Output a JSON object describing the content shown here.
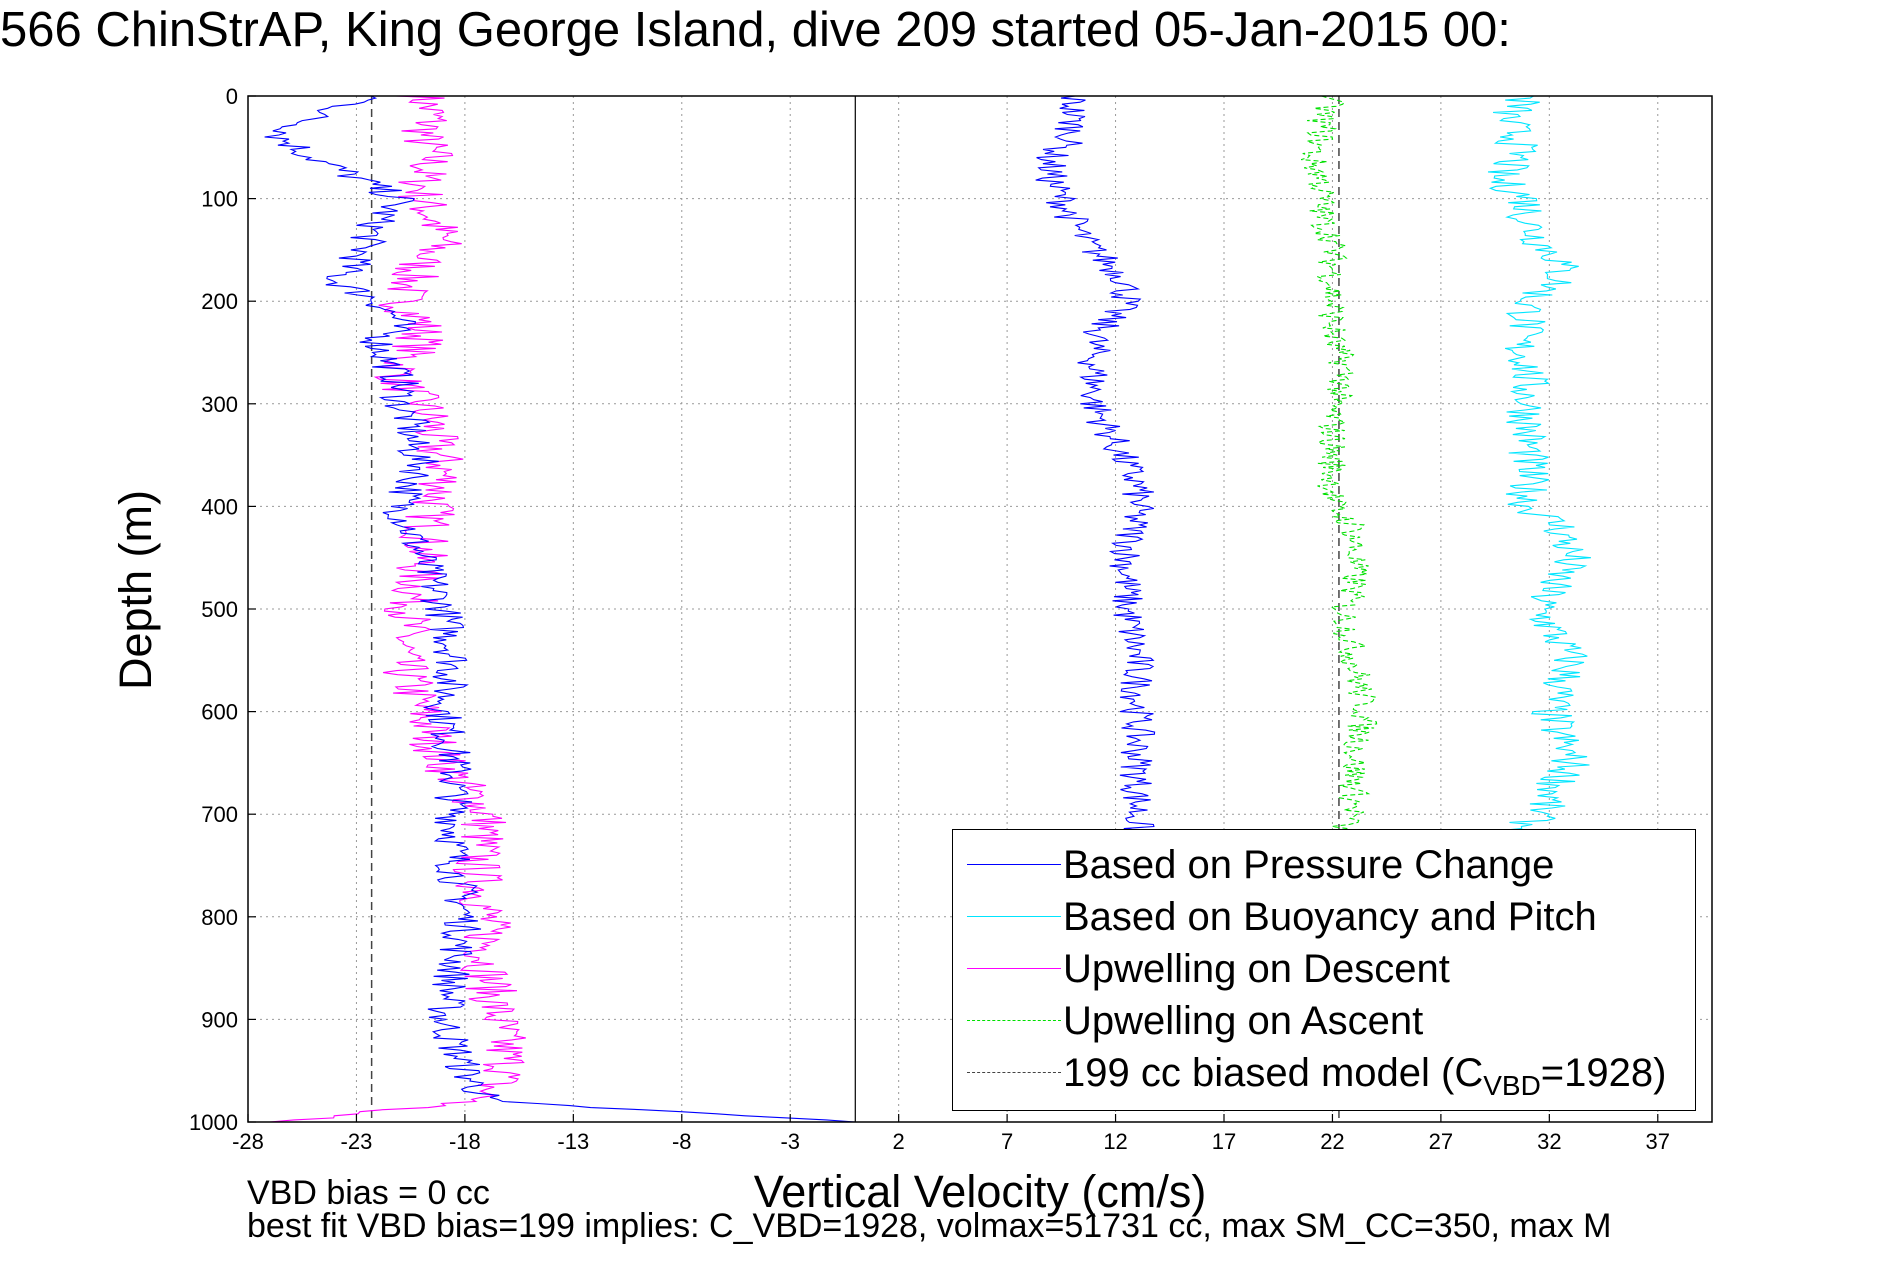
{
  "title": "566 ChinStrAP, King George Island, dive 209 started 05-Jan-2015 00:",
  "notes": {
    "line1": "VBD bias = 0 cc",
    "line2": "best fit VBD bias=199 implies: C_VBD=1928, volmax=51731 cc, max SM_CC=350, max M"
  },
  "chart_data": {
    "type": "line",
    "xlabel": "Vertical Velocity (cm/s)",
    "ylabel": "Depth (m)",
    "xlim": [
      -28,
      39.5
    ],
    "ylim": [
      0,
      1000
    ],
    "y_reversed": true,
    "grid": true,
    "xticks": [
      -28,
      -23,
      -18,
      -13,
      -8,
      -3,
      2,
      7,
      12,
      17,
      22,
      27,
      32,
      37
    ],
    "yticks": [
      0,
      100,
      200,
      300,
      400,
      500,
      600,
      700,
      800,
      900,
      1000
    ],
    "legend_position": "bottom-right",
    "zero_line_x": 0,
    "series": [
      {
        "name": "Based on Pressure Change",
        "color": "#0000ff",
        "style": "solid",
        "depth": [
          0,
          20,
          40,
          60,
          80,
          100,
          120,
          140,
          160,
          180,
          200,
          220,
          240,
          260,
          280,
          300,
          320,
          340,
          360,
          380,
          400,
          450,
          500,
          550,
          600,
          650,
          700,
          750,
          800,
          850,
          900,
          950,
          980,
          1000
        ],
        "values": [
          -22,
          -25,
          -26.5,
          -25,
          -23,
          -21,
          -22,
          -22.5,
          -23,
          -24,
          -22,
          -21,
          -22,
          -21.5,
          -21,
          -21,
          -20.5,
          -20.5,
          -20,
          -20.5,
          -21,
          -20,
          -19,
          -18.5,
          -19,
          -18.5,
          -18.5,
          -18.5,
          -18,
          -18.5,
          -19,
          -18,
          -17,
          0
        ],
        "segment2": {
          "depth": [
            0,
            20,
            40,
            60,
            80,
            100,
            120,
            140,
            160,
            180,
            200,
            220,
            240,
            260,
            280,
            300,
            320,
            340,
            360,
            380,
            400,
            450,
            500,
            550,
            600,
            650,
            700,
            720
          ],
          "values": [
            10,
            10,
            10,
            9,
            9,
            9.5,
            10,
            10.5,
            11.5,
            12.5,
            12.5,
            11.5,
            11,
            11,
            11,
            11,
            11.5,
            12,
            12.5,
            13,
            13,
            12.5,
            12.5,
            13,
            13,
            13,
            13,
            13
          ]
        }
      },
      {
        "name": "Based on Buoyancy and Pitch",
        "color": "#00e5ff",
        "style": "solid",
        "depth": [
          0,
          20,
          40,
          60,
          80,
          100,
          120,
          140,
          160,
          180,
          200,
          220,
          240,
          260,
          280,
          300,
          320,
          340,
          360,
          380,
          400,
          420,
          450,
          480,
          500,
          550,
          600,
          650,
          700,
          720
        ],
        "values": [
          31,
          30,
          30.5,
          30.5,
          29.5,
          31,
          31,
          31.5,
          32.5,
          32.5,
          31,
          31,
          30.5,
          31,
          31,
          31,
          31,
          31,
          31,
          31,
          31,
          32.5,
          33,
          32,
          31.5,
          33,
          32,
          33,
          31.5,
          30.5
        ]
      },
      {
        "name": "Upwelling on Descent",
        "color": "#ff00ff",
        "style": "solid",
        "depth": [
          0,
          20,
          40,
          60,
          80,
          100,
          120,
          140,
          160,
          180,
          200,
          220,
          240,
          260,
          280,
          300,
          320,
          340,
          360,
          380,
          400,
          450,
          500,
          550,
          600,
          650,
          700,
          750,
          800,
          850,
          900,
          950,
          980,
          1000
        ],
        "values": [
          -20,
          -19.5,
          -20,
          -19.5,
          -20,
          -20,
          -19.5,
          -19,
          -20,
          -20.5,
          -21,
          -20,
          -20,
          -21,
          -21,
          -20,
          -19.5,
          -19.5,
          -19,
          -19,
          -19.5,
          -20,
          -20.5,
          -21,
          -20,
          -19,
          -17,
          -17.5,
          -17,
          -17,
          -16.5,
          -16,
          -17.5,
          -27
        ]
      },
      {
        "name": "Upwelling on Ascent",
        "color": "#00e000",
        "style": "dashed",
        "depth": [
          0,
          20,
          40,
          60,
          80,
          100,
          120,
          140,
          160,
          180,
          200,
          220,
          240,
          260,
          280,
          300,
          320,
          340,
          360,
          380,
          400,
          420,
          450,
          480,
          500,
          550,
          600,
          650,
          700,
          720
        ],
        "values": [
          22,
          21.5,
          21.5,
          21,
          21.5,
          21.5,
          21.5,
          22,
          22,
          22,
          22,
          22,
          22,
          22.5,
          22.5,
          22,
          22,
          22,
          22,
          22,
          22,
          23,
          23,
          23,
          22.5,
          23,
          23.5,
          23,
          23,
          22
        ]
      },
      {
        "name": "199 cc biased model (C_VBD=1928)",
        "color": "#444444",
        "style": "dashed",
        "depth": [
          0,
          1000
        ],
        "values": [
          -22.3,
          -22.3
        ],
        "mirror_values": [
          22.3,
          22.3
        ]
      }
    ],
    "legend": [
      {
        "label": "Based on Pressure Change",
        "color": "#0000ff",
        "style": "solid"
      },
      {
        "label": "Based on Buoyancy and Pitch",
        "color": "#00e5ff",
        "style": "solid"
      },
      {
        "label": "Upwelling on Descent",
        "color": "#ff00ff",
        "style": "solid"
      },
      {
        "label": "Upwelling on Ascent",
        "color": "#00e000",
        "style": "dashed"
      },
      {
        "label": "199 cc biased model (C",
        "sub": "VBD",
        "label_after": "=1928)",
        "color": "#444444",
        "style": "dashed"
      }
    ]
  }
}
